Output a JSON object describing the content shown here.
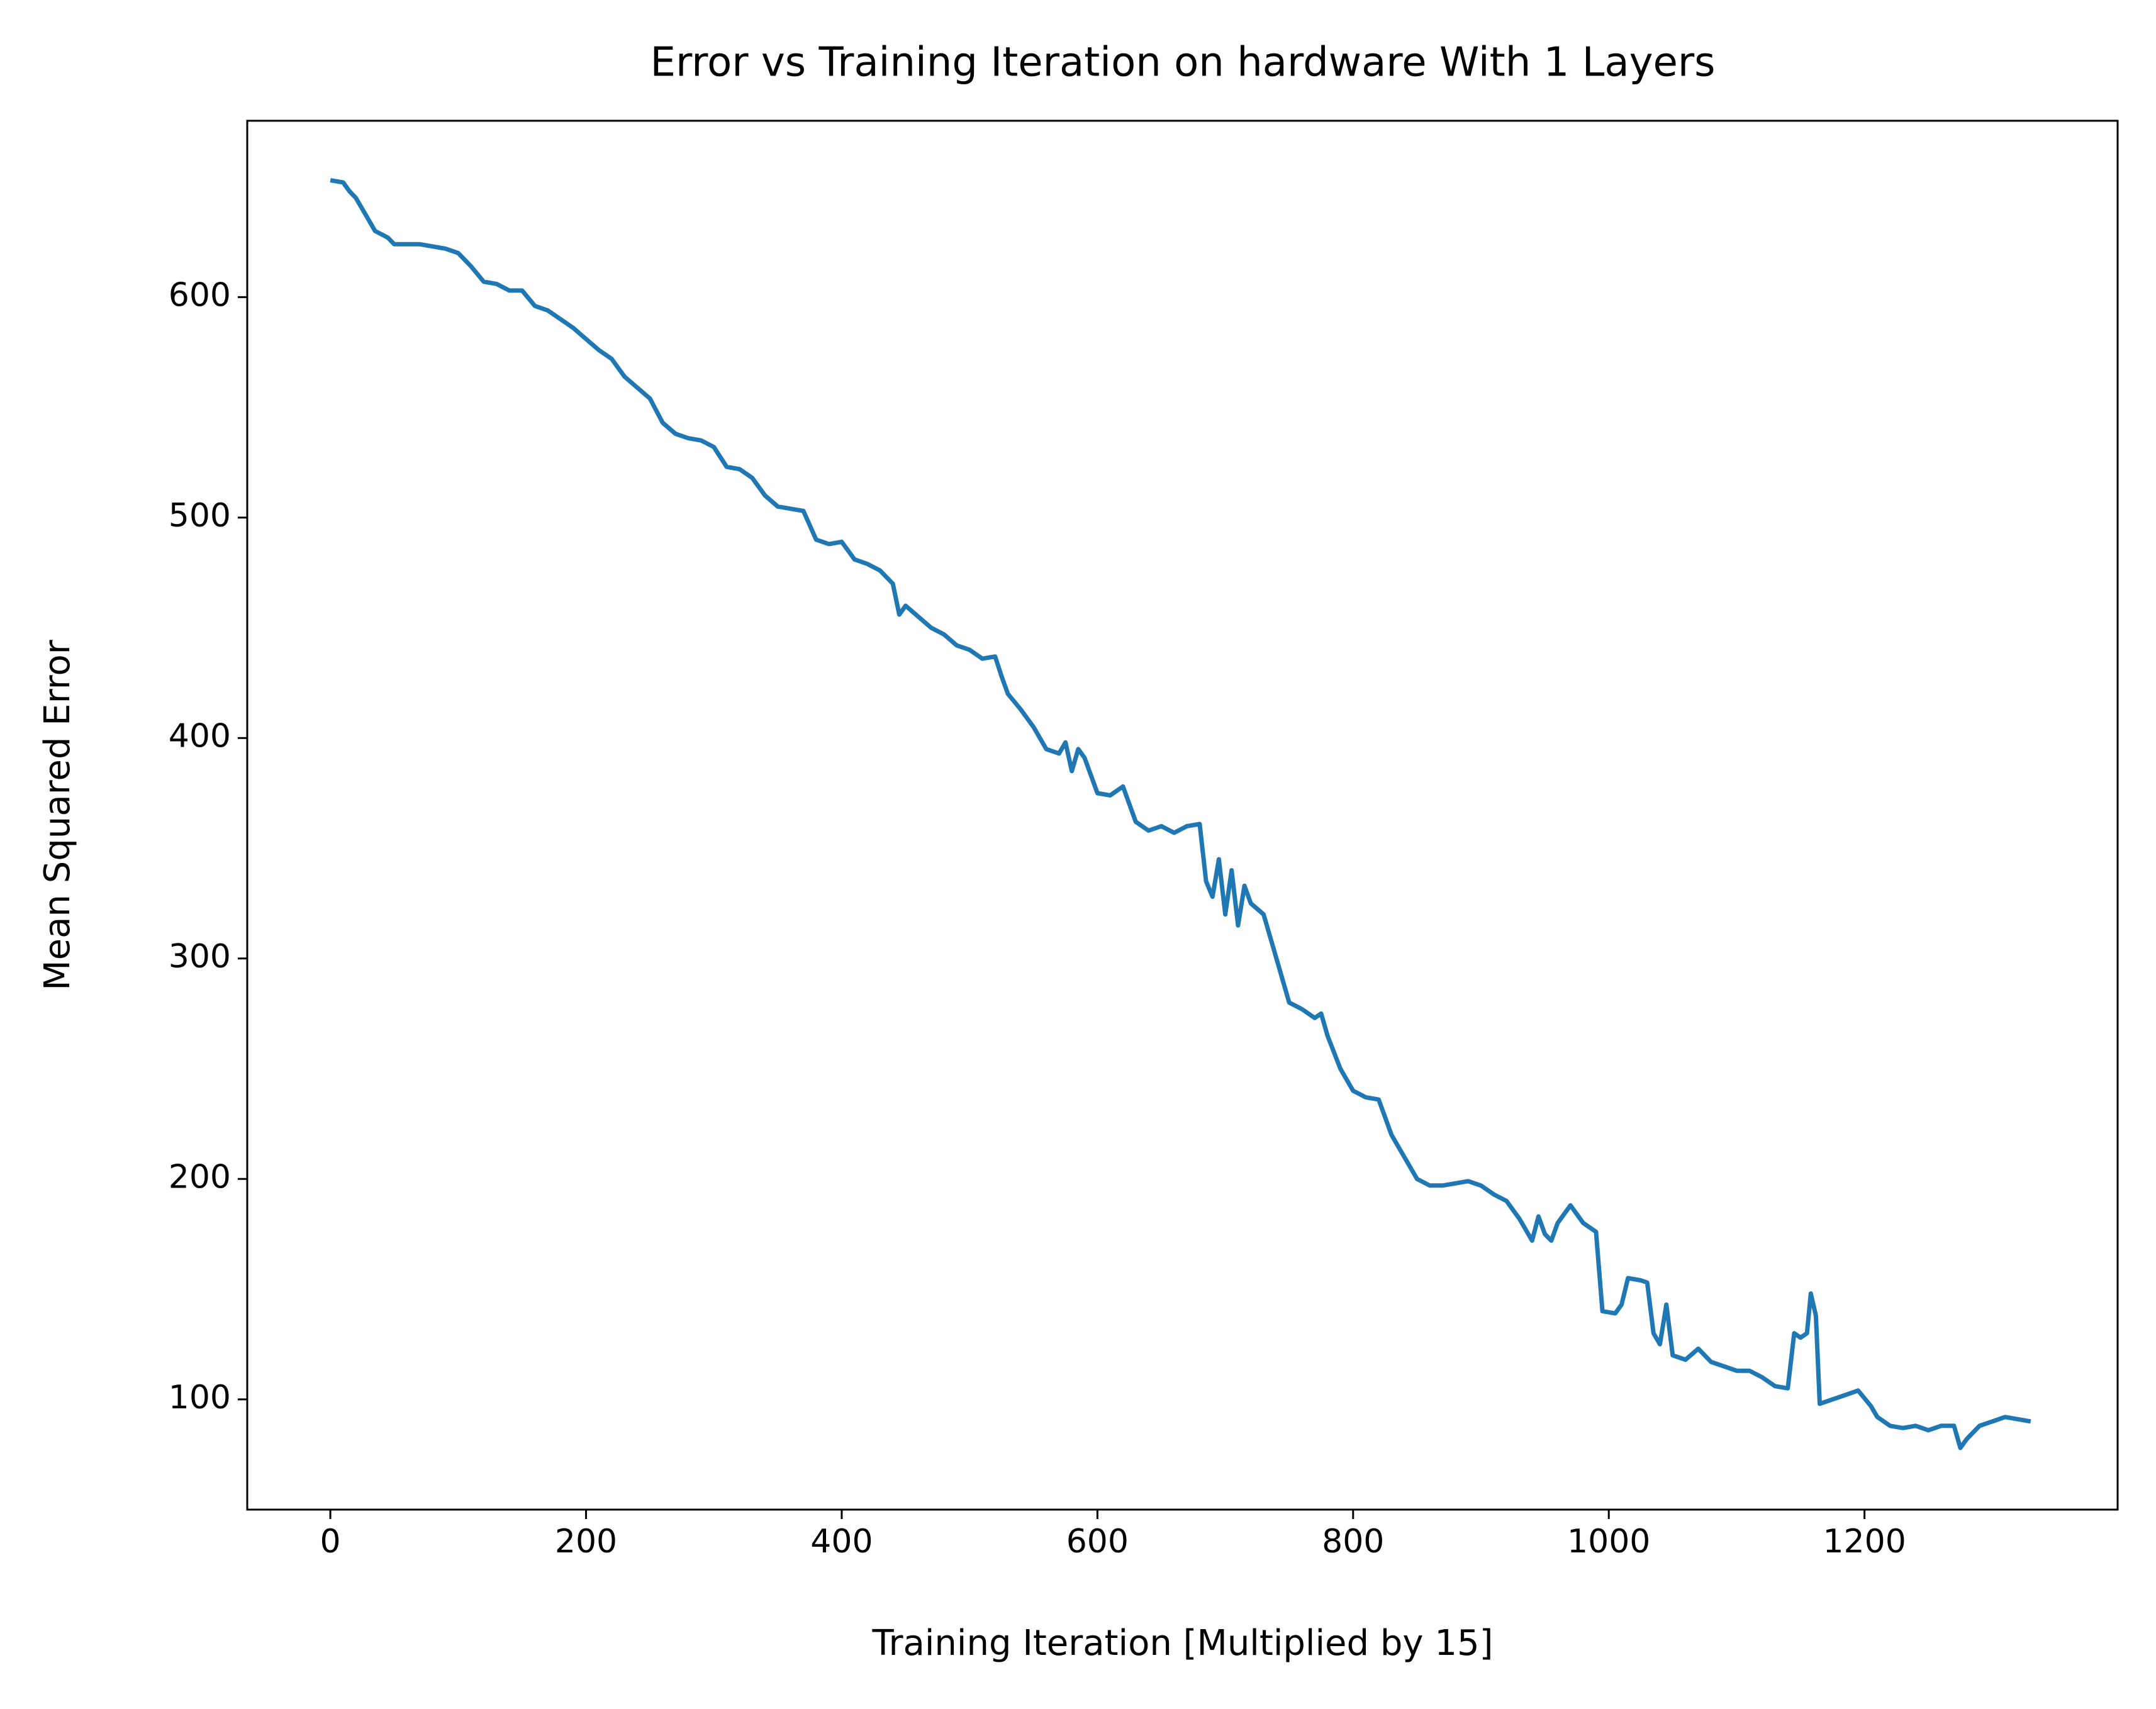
{
  "chart_data": {
    "type": "line",
    "title": "Error vs Training Iteration on hardware With 1 Layers",
    "x_label": "Training Iteration [Multiplied by 15]",
    "y_label": "Mean Squared Error",
    "xlim": [
      -65,
      1398
    ],
    "ylim": [
      50,
      680
    ],
    "xticks": [
      0,
      200,
      400,
      600,
      800,
      1000,
      1200
    ],
    "yticks": [
      100,
      200,
      300,
      400,
      500,
      600
    ],
    "grid": false,
    "series": [
      {
        "color": "#1f77b4",
        "x": [
          0,
          10,
          15,
          20,
          30,
          35,
          45,
          50,
          70,
          90,
          100,
          110,
          120,
          130,
          140,
          150,
          160,
          170,
          180,
          190,
          200,
          210,
          220,
          230,
          240,
          250,
          260,
          270,
          280,
          290,
          300,
          310,
          320,
          330,
          340,
          350,
          360,
          370,
          380,
          390,
          400,
          410,
          420,
          430,
          440,
          445,
          450,
          460,
          470,
          480,
          490,
          500,
          510,
          520,
          525,
          530,
          540,
          550,
          560,
          570,
          575,
          580,
          585,
          590,
          600,
          610,
          620,
          630,
          640,
          650,
          660,
          670,
          680,
          685,
          690,
          695,
          700,
          705,
          710,
          715,
          720,
          730,
          740,
          750,
          760,
          770,
          775,
          780,
          790,
          800,
          810,
          820,
          830,
          840,
          850,
          860,
          870,
          880,
          890,
          900,
          910,
          920,
          930,
          940,
          945,
          950,
          955,
          960,
          970,
          980,
          990,
          995,
          1005,
          1010,
          1015,
          1025,
          1030,
          1035,
          1040,
          1045,
          1050,
          1060,
          1070,
          1080,
          1090,
          1100,
          1110,
          1120,
          1130,
          1140,
          1145,
          1150,
          1155,
          1158,
          1162,
          1165,
          1175,
          1185,
          1195,
          1205,
          1210,
          1220,
          1230,
          1240,
          1250,
          1260,
          1270,
          1275,
          1280,
          1290,
          1300,
          1310,
          1320,
          1330
        ],
        "values": [
          653,
          652,
          648,
          645,
          635,
          630,
          627,
          624,
          624,
          622,
          620,
          614,
          607,
          606,
          603,
          603,
          596,
          594,
          590,
          586,
          581,
          576,
          572,
          564,
          559,
          554,
          543,
          538,
          536,
          535,
          532,
          523,
          522,
          518,
          510,
          505,
          504,
          503,
          490,
          488,
          489,
          481,
          479,
          476,
          470,
          456,
          460,
          455,
          450,
          447,
          442,
          440,
          436,
          437,
          428,
          420,
          413,
          405,
          395,
          393,
          398,
          385,
          395,
          391,
          375,
          374,
          378,
          362,
          358,
          360,
          357,
          360,
          361,
          335,
          328,
          345,
          320,
          340,
          315,
          333,
          325,
          320,
          300,
          280,
          277,
          273,
          275,
          265,
          250,
          240,
          237,
          236,
          220,
          210,
          200,
          197,
          197,
          198,
          199,
          197,
          193,
          190,
          182,
          172,
          183,
          175,
          172,
          180,
          188,
          180,
          176,
          140,
          139,
          143,
          155,
          154,
          153,
          130,
          125,
          143,
          120,
          118,
          123,
          117,
          115,
          113,
          113,
          110,
          106,
          105,
          130,
          128,
          130,
          148,
          138,
          98,
          100,
          102,
          104,
          97,
          92,
          88,
          87,
          88,
          86,
          88,
          88,
          78,
          82,
          88,
          90,
          92,
          91,
          90
        ]
      }
    ]
  }
}
